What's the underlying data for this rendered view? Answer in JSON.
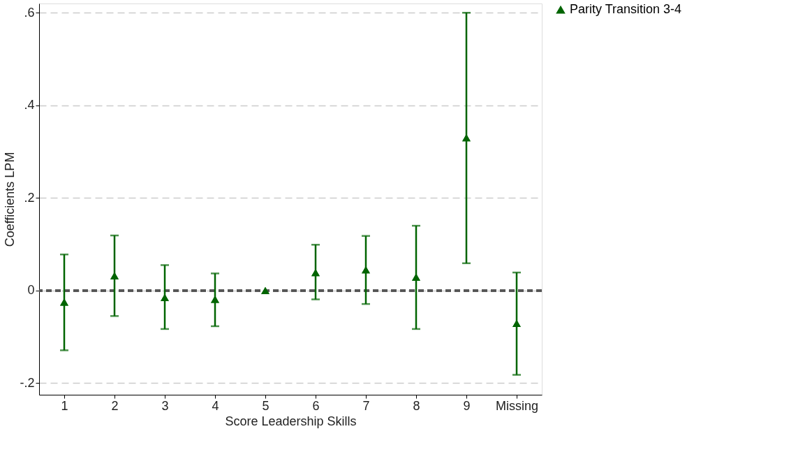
{
  "chart_data": {
    "type": "scatter",
    "xlabel": "Score Leadership Skills",
    "ylabel": "Coefficients LPM",
    "categories": [
      "1",
      "2",
      "3",
      "4",
      "5",
      "6",
      "7",
      "8",
      "9",
      "Missing"
    ],
    "series": [
      {
        "name": "Parity Transition 3-4",
        "color": "#006400",
        "values": [
          -0.025,
          0.032,
          -0.015,
          -0.019,
          0,
          0.039,
          0.045,
          0.029,
          0.33,
          -0.071
        ],
        "errors": [
          [
            -0.129,
            0.078
          ],
          [
            -0.055,
            0.119
          ],
          [
            -0.083,
            0.055
          ],
          [
            -0.077,
            0.037
          ],
          null,
          [
            -0.019,
            0.099
          ],
          [
            -0.029,
            0.118
          ],
          [
            -0.083,
            0.14
          ],
          [
            0.059,
            0.6
          ],
          [
            -0.182,
            0.039
          ]
        ]
      }
    ],
    "ylim": [
      -0.225,
      0.62
    ],
    "yticks": [
      {
        "value": -0.2,
        "label": "-.2"
      },
      0,
      {
        "value": 0.2,
        "label": ".2"
      },
      {
        "value": 0.4,
        "label": ".4"
      },
      {
        "value": 0.6,
        "label": ".6"
      }
    ],
    "ref_lines": [
      {
        "axis": "y",
        "value": 0,
        "color": "#555555",
        "line_style": "dashed"
      }
    ],
    "grid": "y",
    "marker": "triangle",
    "legend": "right"
  }
}
